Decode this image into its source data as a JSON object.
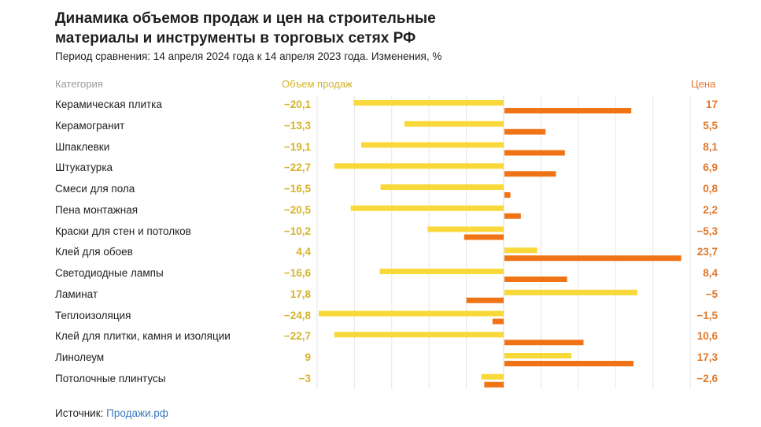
{
  "header": {
    "title": "Динамика объемов продаж и цен на строительные материалы и инструменты в торговых сетях РФ",
    "subtitle": "Период сравнения: 14 апреля 2024 года к 14 апреля 2023 года. Изменения, %"
  },
  "columns": {
    "category": "Категория",
    "sales": "Объем продаж",
    "price": "Цена"
  },
  "rows": [
    {
      "label": "Керамическая плитка",
      "sales_text": "−20,1",
      "price_text": "17"
    },
    {
      "label": "Керамогранит",
      "sales_text": "−13,3",
      "price_text": "5,5"
    },
    {
      "label": "Шпаклевки",
      "sales_text": "−19,1",
      "price_text": "8,1"
    },
    {
      "label": "Штукатурка",
      "sales_text": "−22,7",
      "price_text": "6,9"
    },
    {
      "label": "Смеси для пола",
      "sales_text": "−16,5",
      "price_text": "0,8"
    },
    {
      "label": "Пена монтажная",
      "sales_text": "−20,5",
      "price_text": "2,2"
    },
    {
      "label": "Краски для стен и потолков",
      "sales_text": "−10,2",
      "price_text": "−5,3"
    },
    {
      "label": "Клей для обоев",
      "sales_text": "4,4",
      "price_text": "23,7"
    },
    {
      "label": "Светодиодные лампы",
      "sales_text": "−16,6",
      "price_text": "8,4"
    },
    {
      "label": "Ламинат",
      "sales_text": "17,8",
      "price_text": "−5"
    },
    {
      "label": "Теплоизоляция",
      "sales_text": "−24,8",
      "price_text": "−1,5"
    },
    {
      "label": "Клей для плитки, камня и изоляции",
      "sales_text": "−22,7",
      "price_text": "10,6"
    },
    {
      "label": "Линолеум",
      "sales_text": "9",
      "price_text": "17,3"
    },
    {
      "label": "Потолочные плинтусы",
      "sales_text": "−3",
      "price_text": "−2,6"
    }
  ],
  "footer": {
    "source_label": "Источник:",
    "source_link": "Продажи.рф"
  },
  "colors": {
    "sales_bar": "#f9d93a",
    "price_bar": "#f07416",
    "sales_text": "#d4b32a",
    "price_text": "#e0782c",
    "grid": "#e6e6e6",
    "link": "#3a78c2"
  },
  "chart_data": {
    "type": "bar",
    "orientation": "horizontal",
    "title": "Динамика объемов продаж и цен на строительные материалы и инструменты в торговых сетях РФ",
    "subtitle": "Период сравнения: 14 апреля 2024 года к 14 апреля 2023 года. Изменения, %",
    "categories": [
      "Керамическая плитка",
      "Керамогранит",
      "Шпаклевки",
      "Штукатурка",
      "Смеси для пола",
      "Пена монтажная",
      "Краски для стен и потолков",
      "Клей для обоев",
      "Светодиодные лампы",
      "Ламинат",
      "Теплоизоляция",
      "Клей для плитки, камня и изоляции",
      "Линолеум",
      "Потолочные плинтусы"
    ],
    "series": [
      {
        "name": "Объем продаж",
        "values": [
          -20.1,
          -13.3,
          -19.1,
          -22.7,
          -16.5,
          -20.5,
          -10.2,
          4.4,
          -16.6,
          17.8,
          -24.8,
          -22.7,
          9,
          -3
        ]
      },
      {
        "name": "Цена",
        "values": [
          17,
          5.5,
          8.1,
          6.9,
          0.8,
          2.2,
          -5.3,
          23.7,
          8.4,
          -5,
          -1.5,
          10.6,
          17.3,
          -2.6
        ]
      }
    ],
    "xlim": [
      -25,
      25
    ],
    "grid_step": 5,
    "grid": true,
    "xlabel": "",
    "ylabel": "",
    "legend": "column headers top"
  }
}
